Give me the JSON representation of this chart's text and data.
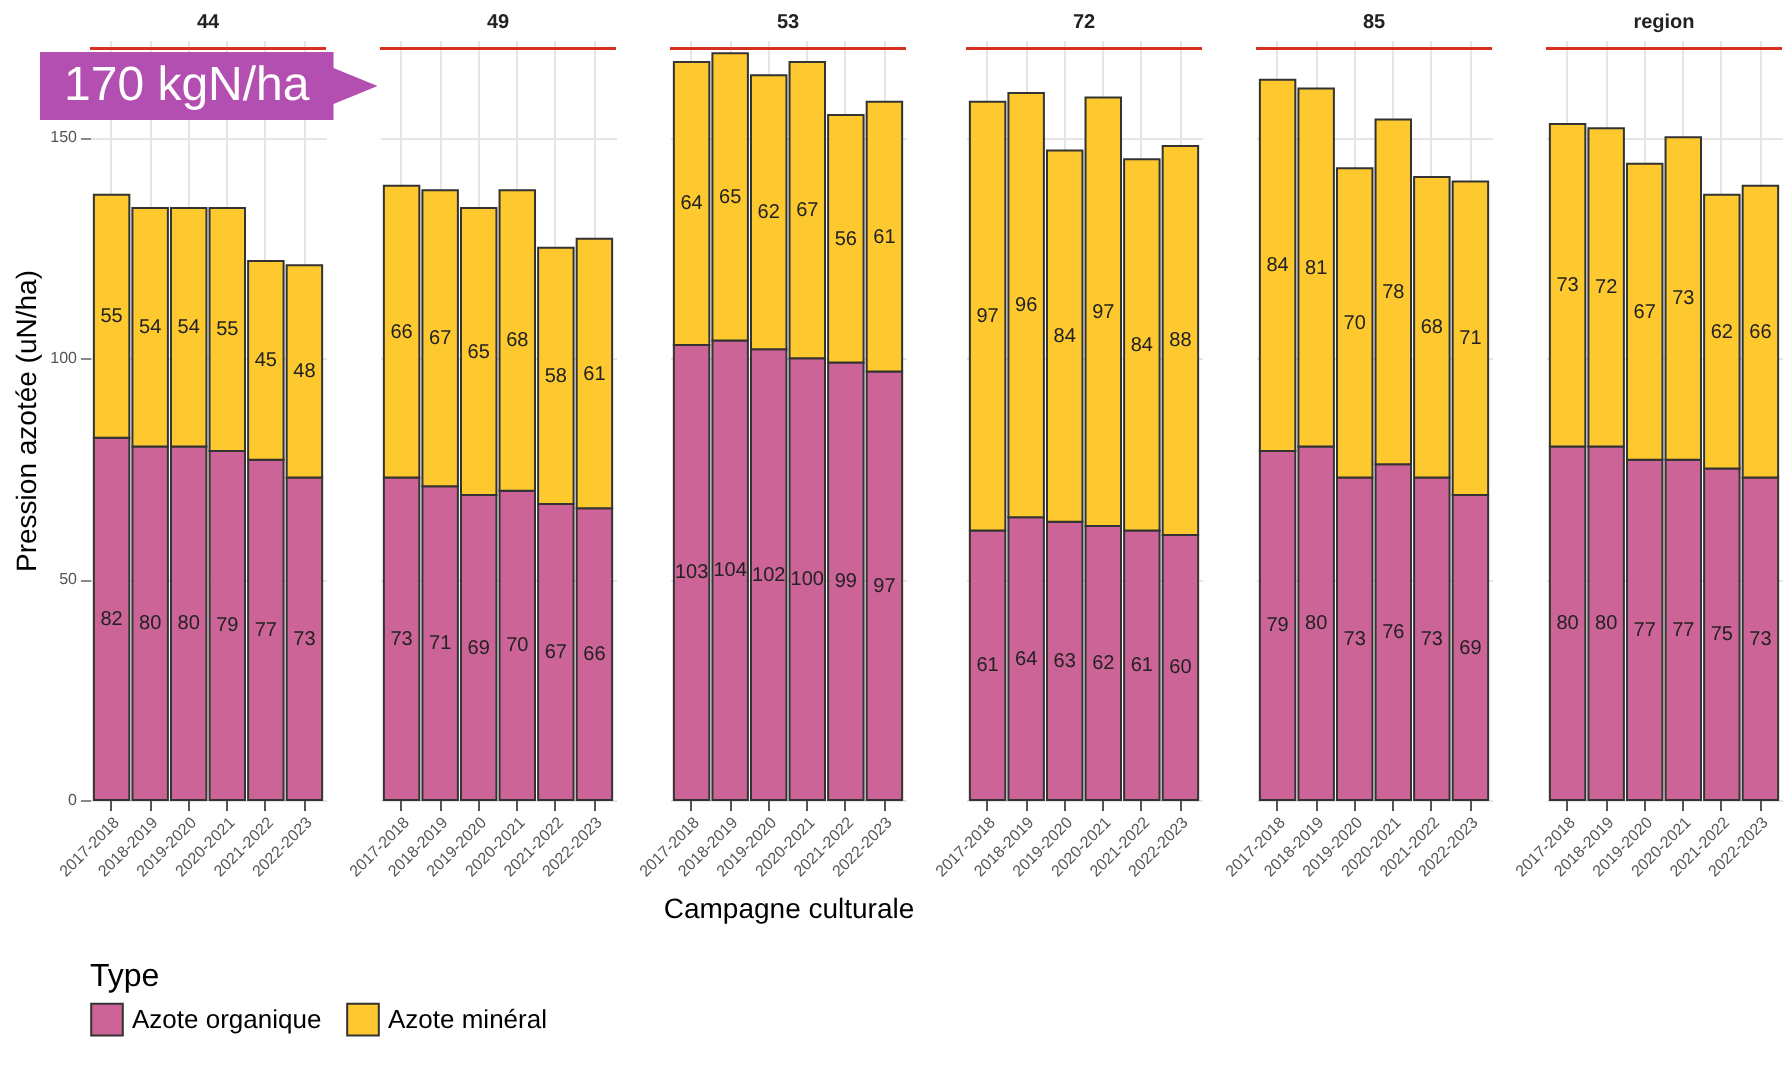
{
  "chart_data": [
    {
      "type": "bar",
      "title": "44",
      "ylabel": "Pression azotée (uN/ha)",
      "legend_title": "Type",
      "categories": [
        "2017-2018",
        "2018-2019",
        "2019-2020",
        "2020-2021",
        "2021-2022",
        "2022-2023"
      ],
      "stacked": true,
      "series": [
        {
          "name": "Azote organique",
          "color": "#cc6497",
          "values": [
            82,
            80,
            80,
            79,
            77,
            73
          ]
        },
        {
          "name": "Azote minéral",
          "color": "#fdc92f",
          "values": [
            55,
            54,
            54,
            55,
            45,
            48
          ]
        }
      ],
      "ylim": [
        0,
        172
      ],
      "yticks": [
        0,
        50,
        100,
        150
      ],
      "grid": true,
      "legend": "bottom",
      "data_labels": true,
      "ref_lines": [
        {
          "axis": "y",
          "value": 170,
          "label": "170 kgN/ha",
          "color": "#d7301f"
        }
      ]
    },
    {
      "type": "bar",
      "title": "49",
      "categories": [
        "2017-2018",
        "2018-2019",
        "2019-2020",
        "2020-2021",
        "2021-2022",
        "2022-2023"
      ],
      "stacked": true,
      "series": [
        {
          "name": "Azote organique",
          "color": "#cc6497",
          "values": [
            73,
            71,
            69,
            70,
            67,
            66
          ]
        },
        {
          "name": "Azote minéral",
          "color": "#fdc92f",
          "values": [
            66,
            67,
            65,
            68,
            58,
            61
          ]
        }
      ],
      "ylim": [
        0,
        172
      ],
      "yticks": [
        0,
        50,
        100,
        150
      ],
      "grid": true,
      "legend": "bottom",
      "data_labels": true,
      "tick_labels": "x",
      "ref_lines": [
        {
          "axis": "y",
          "value": 170,
          "color": "#d7301f"
        }
      ]
    },
    {
      "type": "bar",
      "title": "53",
      "xlabel": "Campagne culturale",
      "categories": [
        "2017-2018",
        "2018-2019",
        "2019-2020",
        "2020-2021",
        "2021-2022",
        "2022-2023"
      ],
      "stacked": true,
      "series": [
        {
          "name": "Azote organique",
          "color": "#cc6497",
          "values": [
            103,
            104,
            102,
            100,
            99,
            97
          ]
        },
        {
          "name": "Azote minéral",
          "color": "#fdc92f",
          "values": [
            64,
            65,
            62,
            67,
            56,
            61
          ]
        }
      ],
      "ylim": [
        0,
        172
      ],
      "yticks": [
        0,
        50,
        100,
        150
      ],
      "grid": true,
      "legend": "bottom",
      "data_labels": true,
      "tick_labels": "x",
      "ref_lines": [
        {
          "axis": "y",
          "value": 170,
          "color": "#d7301f"
        }
      ]
    },
    {
      "type": "bar",
      "title": "72",
      "categories": [
        "2017-2018",
        "2018-2019",
        "2019-2020",
        "2020-2021",
        "2021-2022",
        "2022-2023"
      ],
      "stacked": true,
      "series": [
        {
          "name": "Azote organique",
          "color": "#cc6497",
          "values": [
            61,
            64,
            63,
            62,
            61,
            60
          ]
        },
        {
          "name": "Azote minéral",
          "color": "#fdc92f",
          "values": [
            97,
            96,
            84,
            97,
            84,
            88
          ]
        }
      ],
      "ylim": [
        0,
        172
      ],
      "yticks": [
        0,
        50,
        100,
        150
      ],
      "grid": true,
      "legend": "bottom",
      "data_labels": true,
      "tick_labels": "x",
      "ref_lines": [
        {
          "axis": "y",
          "value": 170,
          "color": "#d7301f"
        }
      ]
    },
    {
      "type": "bar",
      "title": "85",
      "categories": [
        "2017-2018",
        "2018-2019",
        "2019-2020",
        "2020-2021",
        "2021-2022",
        "2022-2023"
      ],
      "stacked": true,
      "series": [
        {
          "name": "Azote organique",
          "color": "#cc6497",
          "values": [
            79,
            80,
            73,
            76,
            73,
            69
          ]
        },
        {
          "name": "Azote minéral",
          "color": "#fdc92f",
          "values": [
            84,
            81,
            70,
            78,
            68,
            71
          ]
        }
      ],
      "ylim": [
        0,
        172
      ],
      "yticks": [
        0,
        50,
        100,
        150
      ],
      "grid": true,
      "legend": "bottom",
      "data_labels": true,
      "tick_labels": "x",
      "ref_lines": [
        {
          "axis": "y",
          "value": 170,
          "color": "#d7301f"
        }
      ]
    },
    {
      "type": "bar",
      "title": "region",
      "categories": [
        "2017-2018",
        "2018-2019",
        "2019-2020",
        "2020-2021",
        "2021-2022",
        "2022-2023"
      ],
      "stacked": true,
      "series": [
        {
          "name": "Azote organique",
          "color": "#cc6497",
          "values": [
            80,
            80,
            77,
            77,
            75,
            73
          ]
        },
        {
          "name": "Azote minéral",
          "color": "#fdc92f",
          "values": [
            73,
            72,
            67,
            73,
            62,
            66
          ]
        }
      ],
      "ylim": [
        0,
        172
      ],
      "yticks": [
        0,
        50,
        100,
        150
      ],
      "grid": true,
      "legend": "bottom",
      "data_labels": true,
      "tick_labels": "x",
      "ref_lines": [
        {
          "axis": "y",
          "value": 170,
          "color": "#d7301f"
        }
      ]
    }
  ]
}
